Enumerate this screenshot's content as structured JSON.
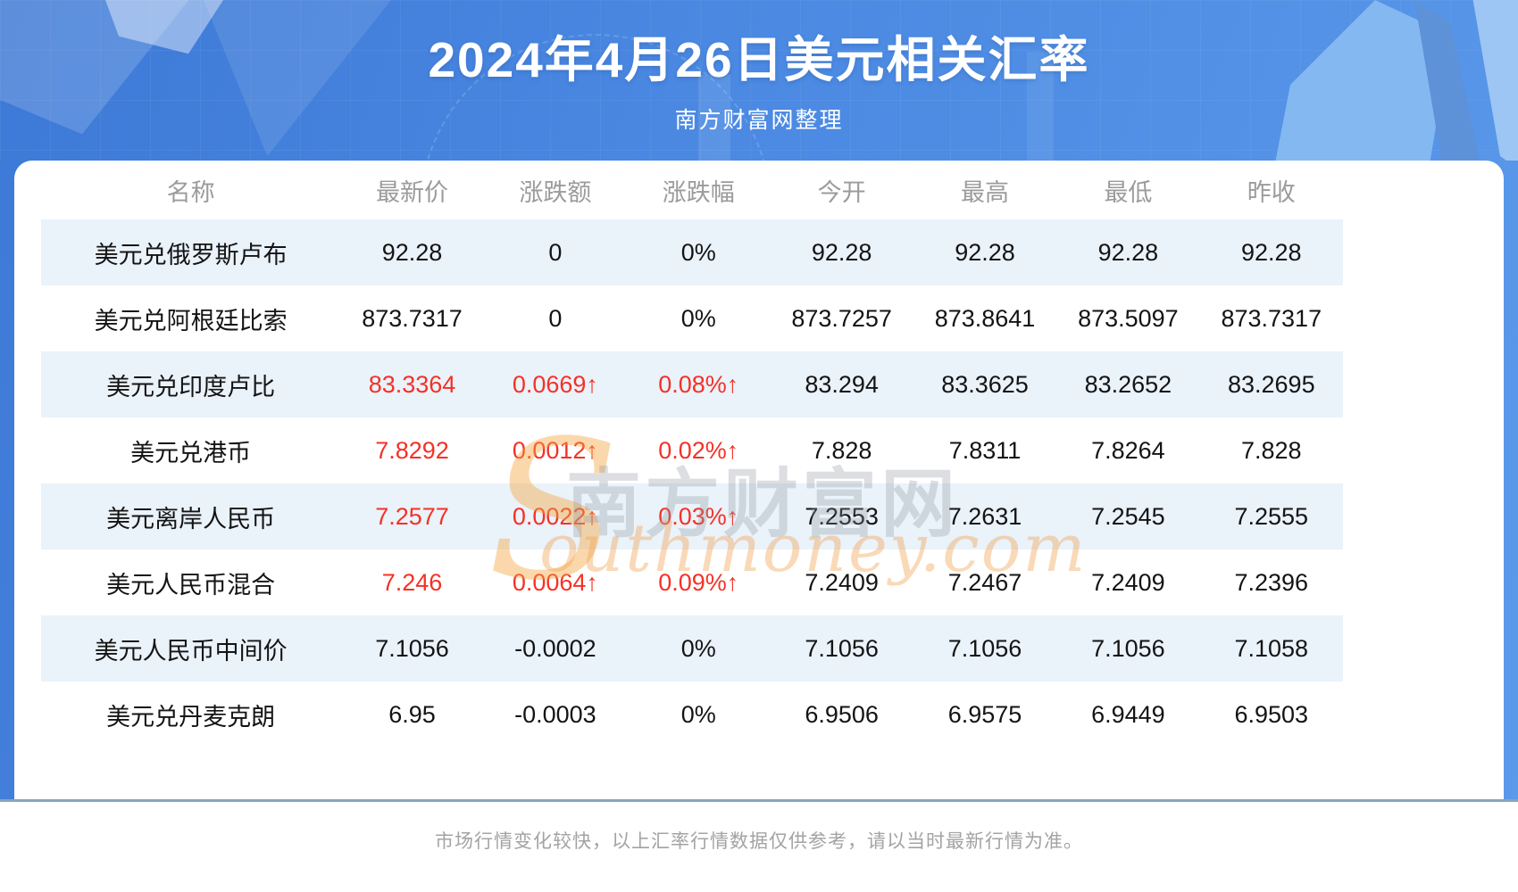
{
  "header": {
    "title": "2024年4月26日美元相关汇率",
    "subtitle": "南方财富网整理"
  },
  "chart_data": {
    "type": "table",
    "title": "2024年4月26日美元相关汇率",
    "columns": [
      "名称",
      "最新价",
      "涨跌额",
      "涨跌幅",
      "今开",
      "最高",
      "最低",
      "昨收"
    ],
    "rows": [
      {
        "name": "美元兑俄罗斯卢布",
        "latest": "92.28",
        "change": "0",
        "change_pct": "0%",
        "open": "92.28",
        "high": "92.28",
        "low": "92.28",
        "prev_close": "92.28",
        "highlight": false
      },
      {
        "name": "美元兑阿根廷比索",
        "latest": "873.7317",
        "change": "0",
        "change_pct": "0%",
        "open": "873.7257",
        "high": "873.8641",
        "low": "873.5097",
        "prev_close": "873.7317",
        "highlight": false
      },
      {
        "name": "美元兑印度卢比",
        "latest": "83.3364",
        "change": "0.0669↑",
        "change_pct": "0.08%↑",
        "open": "83.294",
        "high": "83.3625",
        "low": "83.2652",
        "prev_close": "83.2695",
        "highlight": true
      },
      {
        "name": "美元兑港币",
        "latest": "7.8292",
        "change": "0.0012↑",
        "change_pct": "0.02%↑",
        "open": "7.828",
        "high": "7.8311",
        "low": "7.8264",
        "prev_close": "7.828",
        "highlight": true
      },
      {
        "name": "美元离岸人民币",
        "latest": "7.2577",
        "change": "0.0022↑",
        "change_pct": "0.03%↑",
        "open": "7.2553",
        "high": "7.2631",
        "low": "7.2545",
        "prev_close": "7.2555",
        "highlight": true
      },
      {
        "name": "美元人民币混合",
        "latest": "7.246",
        "change": "0.0064↑",
        "change_pct": "0.09%↑",
        "open": "7.2409",
        "high": "7.2467",
        "low": "7.2409",
        "prev_close": "7.2396",
        "highlight": true
      },
      {
        "name": "美元人民币中间价",
        "latest": "7.1056",
        "change": "-0.0002",
        "change_pct": "0%",
        "open": "7.1056",
        "high": "7.1056",
        "low": "7.1056",
        "prev_close": "7.1058",
        "highlight": false
      },
      {
        "name": "美元兑丹麦克朗",
        "latest": "6.95",
        "change": "-0.0003",
        "change_pct": "0%",
        "open": "6.9506",
        "high": "6.9575",
        "low": "6.9449",
        "prev_close": "6.9503",
        "highlight": false
      }
    ]
  },
  "watermark": {
    "swoosh": "S",
    "cn": "南方财富网",
    "en": "outhmoney.com"
  },
  "footer": {
    "disclaimer": "市场行情变化较快，以上汇率行情数据仅供参考，请以当时最新行情为准。"
  },
  "colors": {
    "background_blue": "#4a88e2",
    "row_alt_blue": "#eaf2fa",
    "up_red": "#f53126",
    "header_gray": "#9b9b9b",
    "divider_gray_blue": "#87a5bf",
    "watermark_orange": "#f6a43c"
  }
}
